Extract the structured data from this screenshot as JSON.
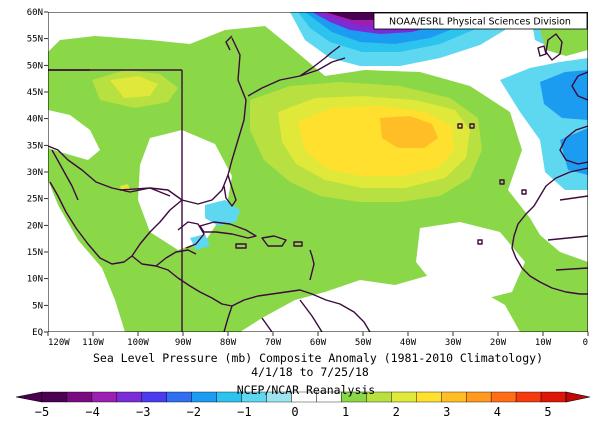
{
  "credit": "NOAA/ESRL Physical Sciences Division",
  "caption": {
    "title": "Sea Level Pressure (mb) Composite Anomaly (1981-2010 Climatology)",
    "dates": "4/1/18  to 7/25/18",
    "source": "NCEP/NCAR Reanalysis"
  },
  "axes": {
    "lat_labels": [
      "60N",
      "55N",
      "50N",
      "45N",
      "40N",
      "35N",
      "30N",
      "25N",
      "20N",
      "15N",
      "10N",
      "5N",
      "EQ"
    ],
    "lon_labels": [
      "120W",
      "110W",
      "100W",
      "90W",
      "80W",
      "70W",
      "60W",
      "50W",
      "40W",
      "30W",
      "20W",
      "10W",
      "0"
    ]
  },
  "colorbar": {
    "labels": [
      "−5",
      "−4",
      "−3",
      "−2",
      "−1",
      "0",
      "1",
      "2",
      "3",
      "4",
      "5"
    ],
    "colors": [
      "#4b0052",
      "#7a0a82",
      "#9b1fb0",
      "#7a2cd6",
      "#4a3bee",
      "#2f6ff0",
      "#1c9cf0",
      "#2cc3ee",
      "#5dd8f0",
      "#9ee5f0",
      "#ffffff",
      "#ffffff",
      "#8ad848",
      "#b8e040",
      "#e0e83a",
      "#ffe02e",
      "#ffbe26",
      "#ff9a1e",
      "#ff6e16",
      "#f43a0e",
      "#de1608"
    ]
  }
}
